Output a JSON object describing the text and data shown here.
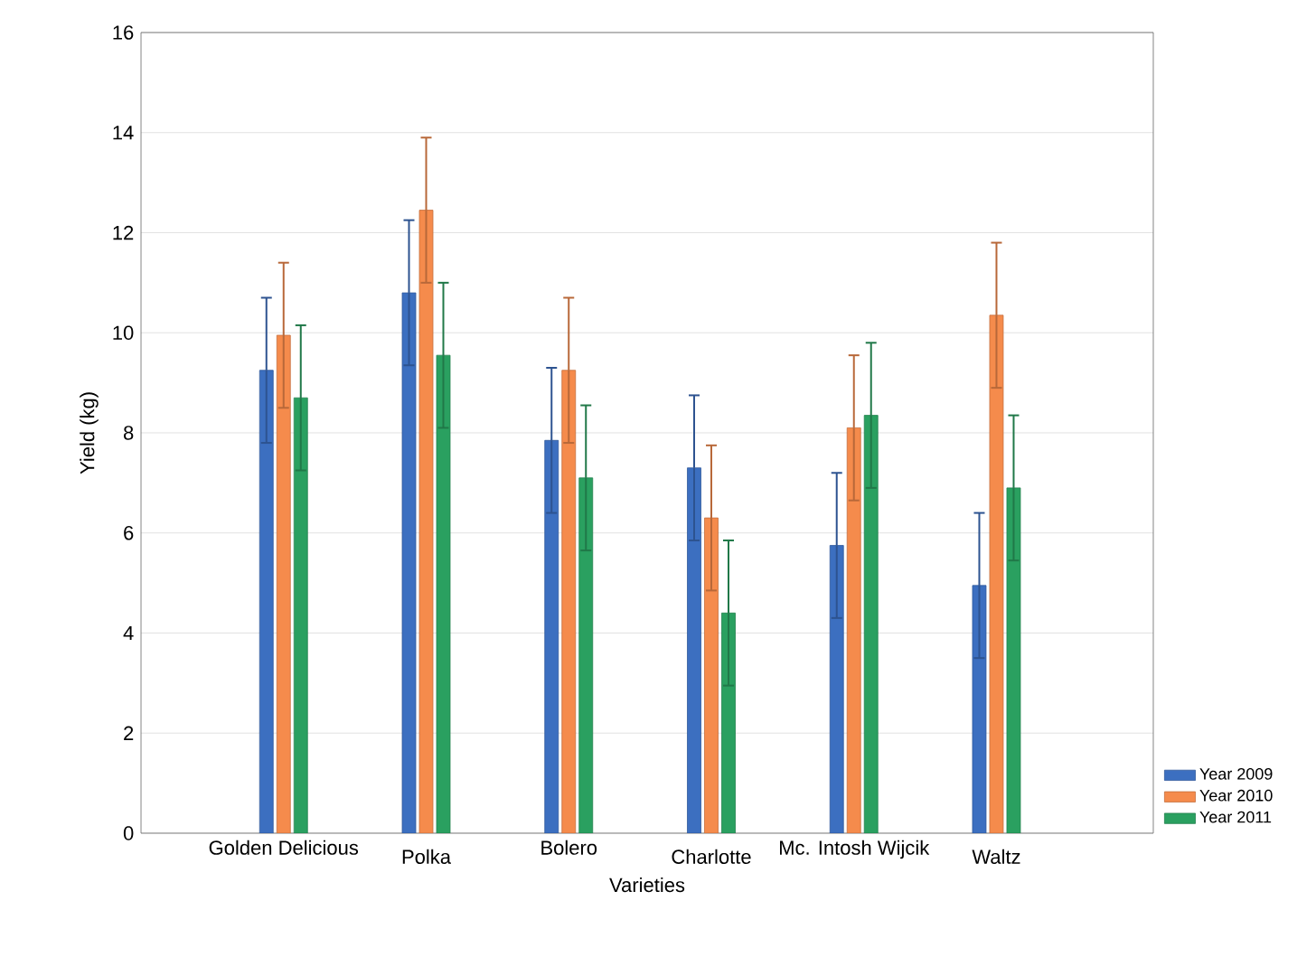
{
  "chart_data": {
    "type": "bar",
    "xlabel": "Varieties",
    "ylabel": "Yield (kg)",
    "categories": [
      "Golden Delicious",
      "Polka",
      "Bolero",
      "Charlotte",
      "Mc. Intosh Wijcik",
      "Waltz"
    ],
    "series": [
      {
        "name": "Year 2009",
        "color": "#3c6fc0",
        "values": [
          9.25,
          10.8,
          7.85,
          7.3,
          5.75,
          4.95
        ],
        "errors": [
          1.45,
          1.45,
          1.45,
          1.45,
          1.45,
          1.45
        ]
      },
      {
        "name": "Year 2010",
        "color": "#f58b4c",
        "values": [
          9.95,
          12.45,
          9.25,
          6.3,
          8.1,
          10.35
        ],
        "errors": [
          1.45,
          1.45,
          1.45,
          1.45,
          1.45,
          1.45
        ]
      },
      {
        "name": "Year 2011",
        "color": "#2aa060",
        "values": [
          8.7,
          9.55,
          7.1,
          4.4,
          8.35,
          6.9
        ],
        "errors": [
          1.45,
          1.45,
          1.45,
          1.45,
          1.45,
          1.45
        ]
      }
    ],
    "ylim": [
      0,
      16
    ],
    "yticks": [
      0,
      2,
      4,
      6,
      8,
      10,
      12,
      14,
      16
    ],
    "grid": "y",
    "legend": "right"
  }
}
